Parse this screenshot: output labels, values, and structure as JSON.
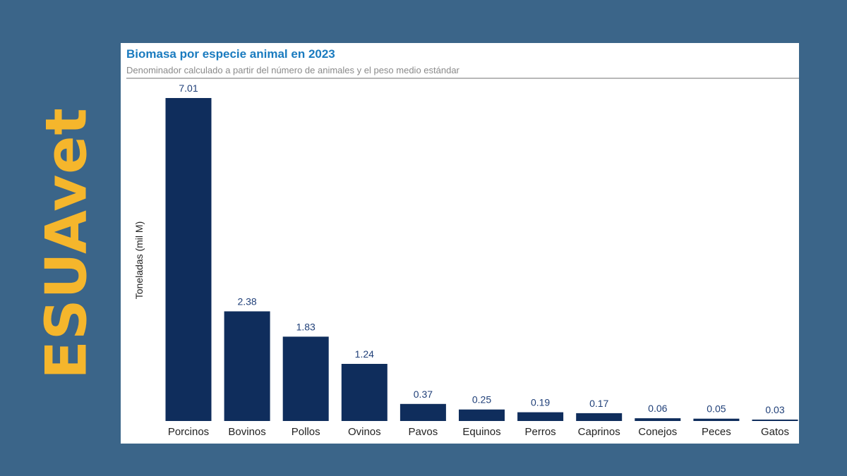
{
  "brand": {
    "text": "ESUAvet",
    "color": "#f5b62c"
  },
  "colors": {
    "background": "#3b6589",
    "bar": "#0f2d5c",
    "title": "#1a7bbf"
  },
  "chart_data": {
    "type": "bar",
    "title": "Biomasa por especie animal en 2023",
    "subtitle": "Denominador calculado a partir del número de animales y el peso medio estándar",
    "ylabel": "Toneladas (mil M)",
    "xlabel": "",
    "categories": [
      "Porcinos",
      "Bovinos",
      "Pollos",
      "Ovinos",
      "Pavos",
      "Equinos",
      "Perros",
      "Caprinos",
      "Conejos",
      "Peces",
      "Gatos"
    ],
    "values": [
      7.01,
      2.38,
      1.83,
      1.24,
      0.37,
      0.25,
      0.19,
      0.17,
      0.06,
      0.05,
      0.03
    ],
    "value_labels": [
      "7.01",
      "2.38",
      "1.83",
      "1.24",
      "0.37",
      "0.25",
      "0.19",
      "0.17",
      "0.06",
      "0.05",
      "0.03"
    ],
    "ylim": [
      0,
      7.01
    ],
    "grid": false,
    "legend": "none"
  }
}
